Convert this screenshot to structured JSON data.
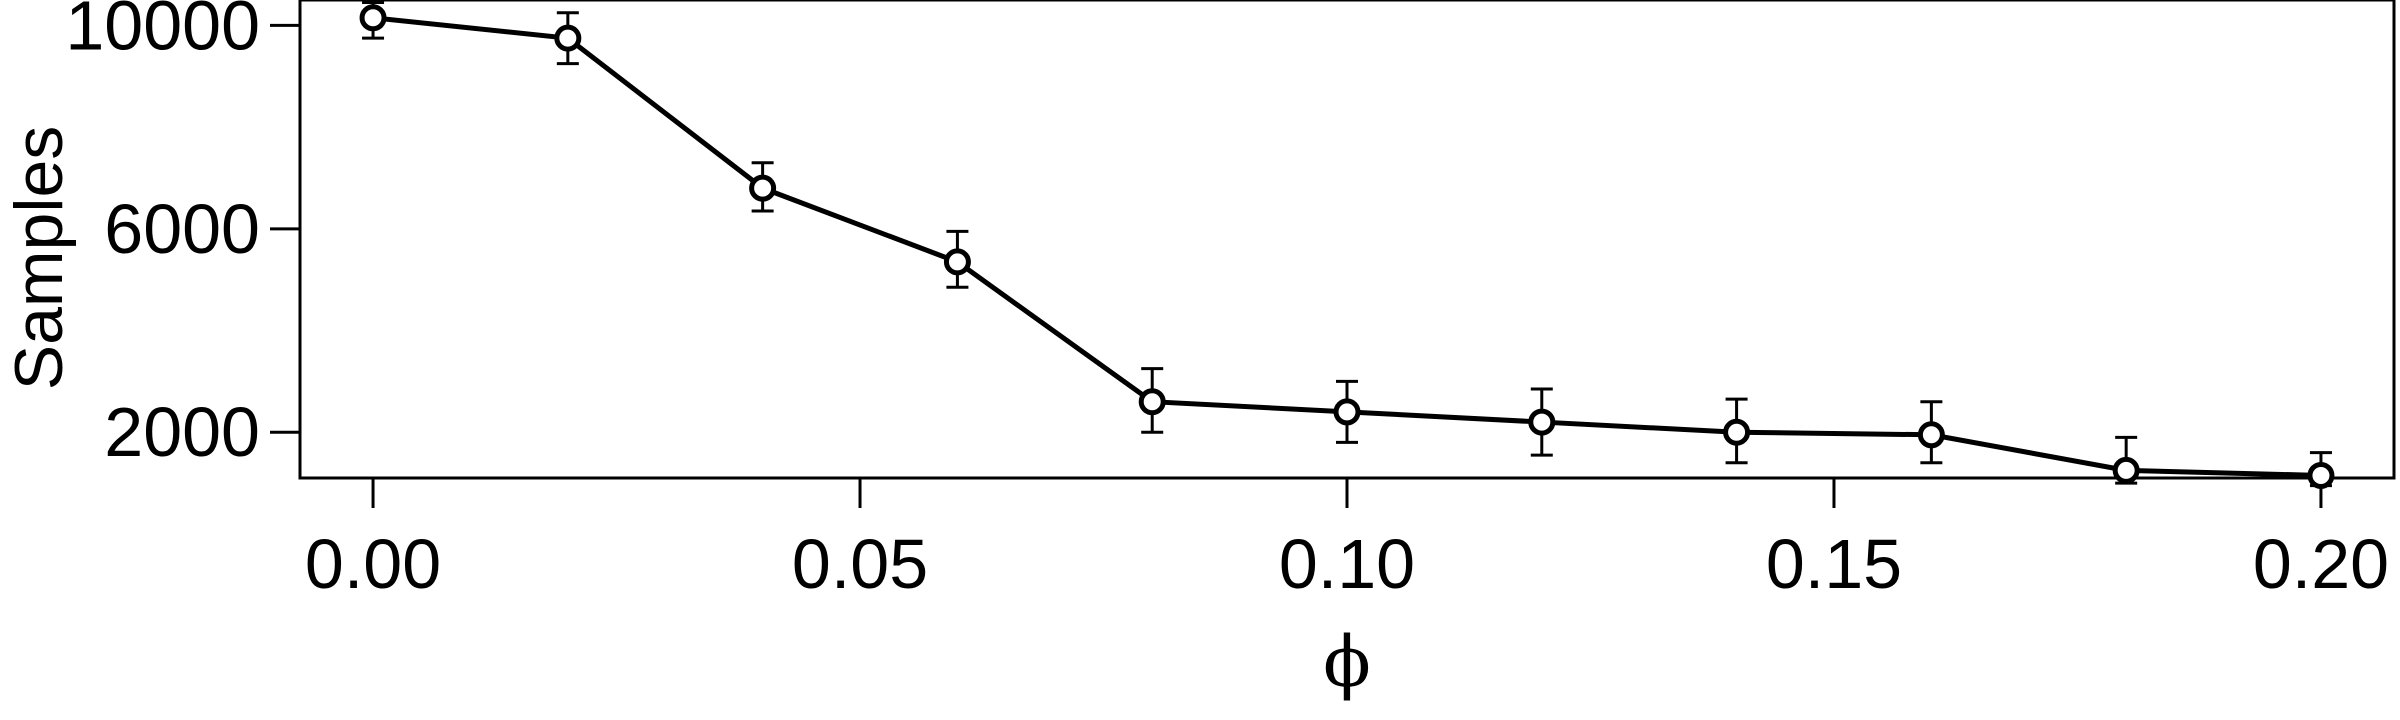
{
  "chart_data": {
    "type": "line",
    "title": "",
    "xlabel": "ϕ",
    "ylabel": "Samples",
    "xlim": [
      -0.0075,
      0.2075
    ],
    "ylim": [
      1100,
      10500
    ],
    "x_ticks": [
      0.0,
      0.05,
      0.1,
      0.15,
      0.2
    ],
    "x_tick_labels": [
      "0.00",
      "0.05",
      "0.10",
      "0.15",
      "0.20"
    ],
    "y_ticks": [
      2000,
      6000,
      10000
    ],
    "y_tick_labels": [
      "2000",
      "6000",
      "10000"
    ],
    "grid": false,
    "legend": "none",
    "series": [
      {
        "color": "#000000",
        "marker": "open-circle",
        "x": [
          0.0,
          0.02,
          0.04,
          0.06,
          0.08,
          0.1,
          0.12,
          0.14,
          0.16,
          0.18,
          0.2
        ],
        "y": [
          10150,
          9750,
          6800,
          5350,
          2600,
          2400,
          2200,
          2000,
          1950,
          1250,
          1150
        ],
        "err_low": [
          9750,
          9250,
          6350,
          4850,
          2000,
          1800,
          1550,
          1400,
          1400,
          1000,
          950
        ],
        "err_high": [
          10450,
          10250,
          7300,
          5950,
          3250,
          3000,
          2850,
          2650,
          2600,
          1900,
          1600
        ]
      }
    ]
  }
}
